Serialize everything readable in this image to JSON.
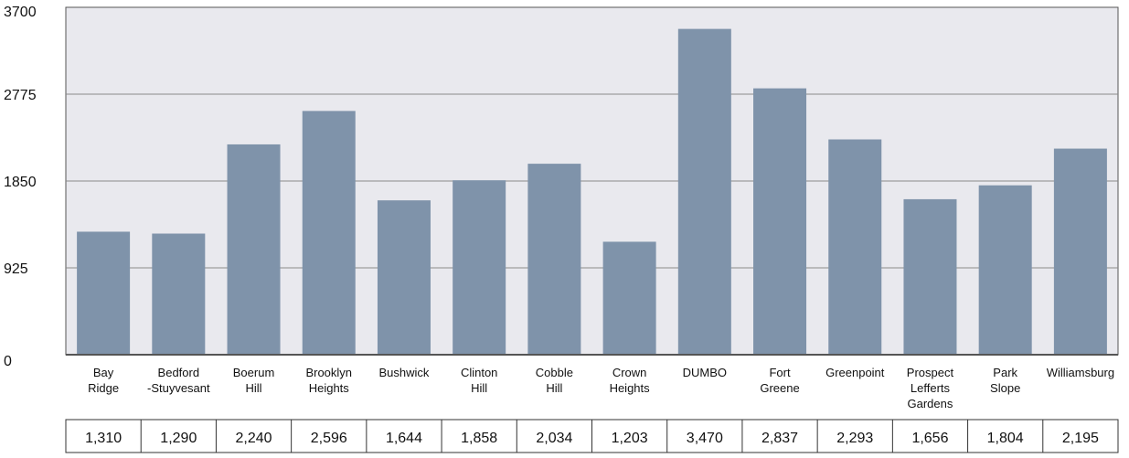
{
  "chart_data": {
    "type": "bar",
    "categories": [
      [
        "Bay",
        "Ridge"
      ],
      [
        "Bedford",
        "-Stuyvesant"
      ],
      [
        "Boerum",
        "Hill"
      ],
      [
        "Brooklyn",
        "Heights"
      ],
      [
        "Bushwick"
      ],
      [
        "Clinton",
        "Hill"
      ],
      [
        "Cobble",
        "Hill"
      ],
      [
        "Crown",
        "Heights"
      ],
      [
        "DUMBO"
      ],
      [
        "Fort",
        "Greene"
      ],
      [
        "Greenpoint"
      ],
      [
        "Prospect",
        "Lefferts",
        "Gardens"
      ],
      [
        "Park",
        "Slope"
      ],
      [
        "Williamsburg"
      ]
    ],
    "values": [
      1310,
      1290,
      2240,
      2596,
      1644,
      1858,
      2034,
      1203,
      3470,
      2837,
      2293,
      1656,
      1804,
      2195
    ],
    "value_labels": [
      "1,310",
      "1,290",
      "2,240",
      "2,596",
      "1,644",
      "1,858",
      "2,034",
      "1,203",
      "3,470",
      "2,837",
      "2,293",
      "1,656",
      "1,804",
      "2,195"
    ],
    "y_ticks": [
      "0",
      "925",
      "1850",
      "2775",
      "3700"
    ],
    "ylim": [
      0,
      3700
    ],
    "grid": true,
    "title": "",
    "xlabel": "",
    "ylabel": "",
    "colors": {
      "bar": "#7f93aa",
      "plot_bg": "#e9e9ee",
      "grid": "#8a8a8a",
      "axis": "#555555",
      "table_border": "#333333"
    }
  }
}
